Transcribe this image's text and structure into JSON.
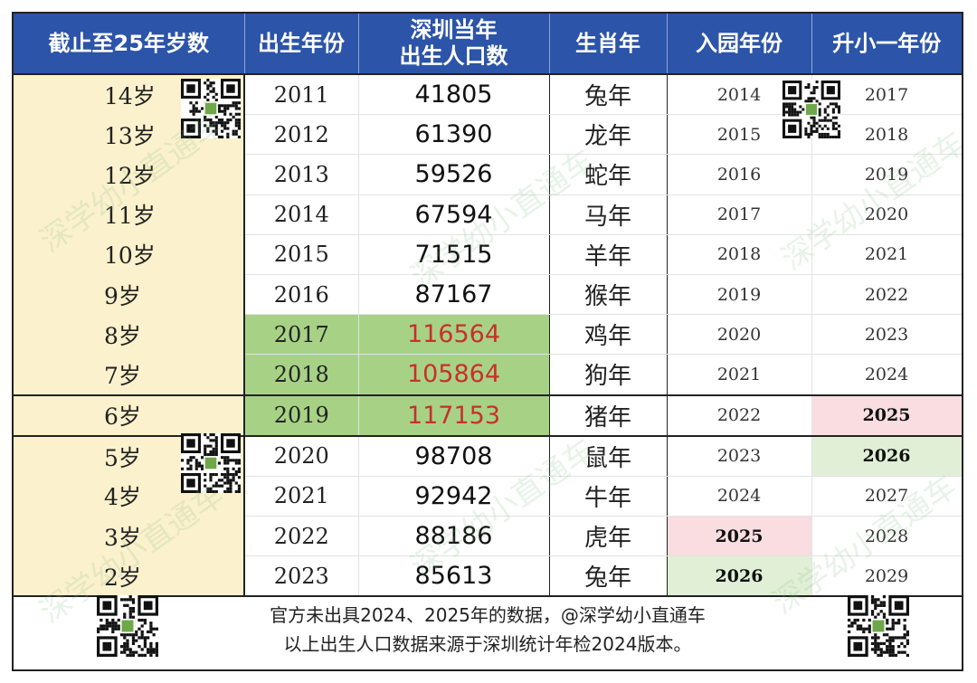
{
  "headers": {
    "age": "截止至25年岁数",
    "birth_year": "出生年份",
    "population_l1": "深圳当年",
    "population_l2": "出生人口数",
    "zodiac": "生肖年",
    "kindergarten": "入园年份",
    "primary": "升小一年份"
  },
  "rows": [
    {
      "age": "14岁",
      "year": "2011",
      "pop": "41805",
      "zodiac": "兔年",
      "kg": "2014",
      "primary": "2017"
    },
    {
      "age": "13岁",
      "year": "2012",
      "pop": "61390",
      "zodiac": "龙年",
      "kg": "2015",
      "primary": "2018"
    },
    {
      "age": "12岁",
      "year": "2013",
      "pop": "59526",
      "zodiac": "蛇年",
      "kg": "2016",
      "primary": "2019"
    },
    {
      "age": "11岁",
      "year": "2014",
      "pop": "67594",
      "zodiac": "马年",
      "kg": "2017",
      "primary": "2020"
    },
    {
      "age": "10岁",
      "year": "2015",
      "pop": "71515",
      "zodiac": "羊年",
      "kg": "2018",
      "primary": "2021"
    },
    {
      "age": "9岁",
      "year": "2016",
      "pop": "87167",
      "zodiac": "猴年",
      "kg": "2019",
      "primary": "2022"
    },
    {
      "age": "8岁",
      "year": "2017",
      "pop": "116564",
      "zodiac": "鸡年",
      "kg": "2020",
      "primary": "2023"
    },
    {
      "age": "7岁",
      "year": "2018",
      "pop": "105864",
      "zodiac": "狗年",
      "kg": "2021",
      "primary": "2024"
    },
    {
      "age": "6岁",
      "year": "2019",
      "pop": "117153",
      "zodiac": "猪年",
      "kg": "2022",
      "primary": "2025"
    },
    {
      "age": "5岁",
      "year": "2020",
      "pop": "98708",
      "zodiac": "鼠年",
      "kg": "2023",
      "primary": "2026"
    },
    {
      "age": "4岁",
      "year": "2021",
      "pop": "92942",
      "zodiac": "牛年",
      "kg": "2024",
      "primary": "2027"
    },
    {
      "age": "3岁",
      "year": "2022",
      "pop": "88186",
      "zodiac": "虎年",
      "kg": "2025",
      "primary": "2028"
    },
    {
      "age": "2岁",
      "year": "2023",
      "pop": "85613",
      "zodiac": "兔年",
      "kg": "2026",
      "primary": "2029"
    }
  ],
  "footer": {
    "line1": "官方未出具2024、2025年的数据，@深学幼小直通车",
    "line2": "以上出生人口数据来源于深圳统计年检2024版本。"
  },
  "watermark": "深学幼小直通车",
  "colors": {
    "header_bg": "#2c54a8",
    "age_bg": "#fcf1cd",
    "green_bg": "#a7d285",
    "red_text": "#c8302c",
    "pink_highlight": "#f9dde0",
    "light_green_highlight": "#e0efd6"
  }
}
